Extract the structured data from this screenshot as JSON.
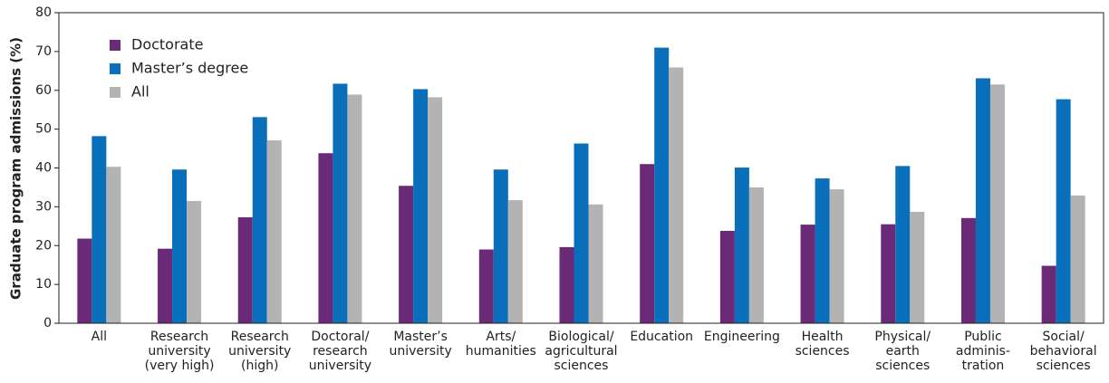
{
  "chart_data": {
    "type": "bar",
    "y_label": "Graduate program admissions (%)",
    "categories": [
      "All",
      "Research\nuniversity\n(very high)",
      "Research\nuniversity\n(high)",
      "Doctoral/\nresearch\nuniversity",
      "Master’s\nuniversity",
      "Arts/\nhumanities",
      "Biological/\nagricultural\nsciences",
      "Education",
      "Engineering",
      "Health\nsciences",
      "Physical/\nearth\nsciences",
      "Public\nadminis-\ntration",
      "Social/\nbehavioral\nsciences"
    ],
    "series": [
      {
        "name": "Doctorate",
        "color": "#6b2a78",
        "values": [
          21.8,
          19.2,
          27.3,
          43.8,
          35.4,
          19.0,
          19.6,
          41.0,
          23.8,
          25.4,
          25.5,
          27.1,
          14.8
        ]
      },
      {
        "name": "Master’s degree",
        "color": "#0a6fba",
        "values": [
          48.2,
          39.6,
          53.1,
          61.7,
          60.3,
          39.6,
          46.3,
          71.0,
          40.1,
          37.3,
          40.5,
          63.1,
          57.7
        ]
      },
      {
        "name": "All",
        "color": "#b3b3b3",
        "values": [
          40.3,
          31.5,
          47.1,
          58.9,
          58.2,
          31.7,
          30.6,
          65.9,
          35.0,
          34.5,
          28.7,
          61.5,
          32.9
        ]
      }
    ],
    "ylim": [
      0,
      80
    ],
    "yticks": [
      0,
      10,
      20,
      30,
      40,
      50,
      60,
      70,
      80
    ],
    "grid": false,
    "legend": "top-left"
  }
}
